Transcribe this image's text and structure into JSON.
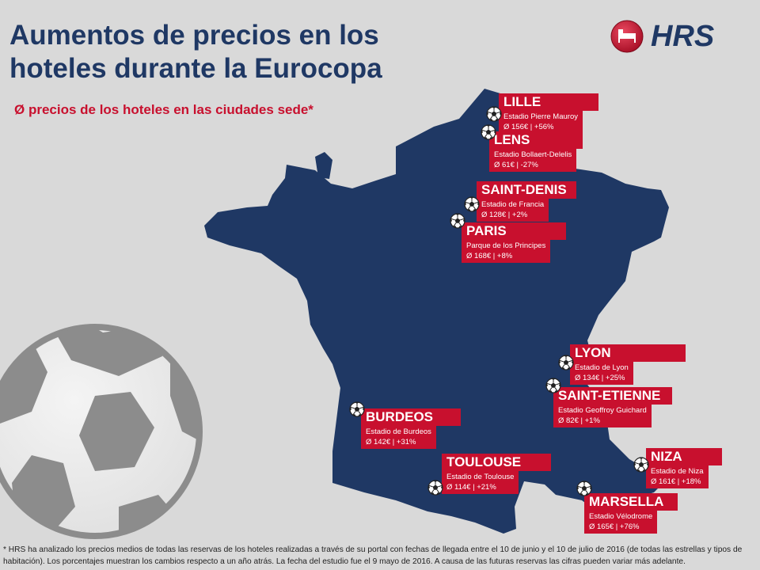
{
  "title": "Aumentos de precios en los hoteles durante la Eurocopa",
  "subtitle": "Ø precios de los hoteles en las ciudades sede*",
  "logo": {
    "text": "HRS",
    "icon": "bed-icon",
    "brand_color": "#c8102e",
    "text_color": "#1f3864"
  },
  "colors": {
    "map": "#1f3864",
    "label": "#c8102e",
    "background": "#d9d9d9"
  },
  "decoration": {
    "icon": "soccer-ball-icon"
  },
  "cities": [
    {
      "name": "LILLE",
      "stadium": "Estadio Pierre Mauroy",
      "stats": "Ø 156€ | +56%"
    },
    {
      "name": "LENS",
      "stadium": "Estadio Bollaert-Delelis",
      "stats": "Ø 61€ | -27%"
    },
    {
      "name": "SAINT-DENIS",
      "stadium": "Estadio de Francia",
      "stats": "Ø 128€ | +2%"
    },
    {
      "name": "PARIS",
      "stadium": "Parque de los Principes",
      "stats": "Ø 168€ | +8%"
    },
    {
      "name": "LYON",
      "stadium": "Estadio de Lyon",
      "stats": "Ø 134€ | +25%"
    },
    {
      "name": "SAINT-ETIENNE",
      "stadium": "Estadio Geoffroy Guichard",
      "stats": "Ø 82€ | +1%"
    },
    {
      "name": "BURDEOS",
      "stadium": "Estadio de Burdeos",
      "stats": "Ø 142€ | +31%"
    },
    {
      "name": "TOULOUSE",
      "stadium": "Estadio de Toulouse",
      "stats": "Ø 114€ | +21%"
    },
    {
      "name": "NIZA",
      "stadium": "Estadio de Niza",
      "stats": "Ø 161€ | +18%"
    },
    {
      "name": "MARSELLA",
      "stadium": "Estadio Vélodrome",
      "stats": "Ø 165€ | +76%"
    }
  ],
  "footnote": "* HRS  ha analizado los precios medios de todas las reservas de los hoteles realizadas a través de su portal con fechas de llegada entre el 10 de junio  y el 10 de julio de 2016 (de todas las estrellas y tipos de habitación). Los porcentajes muestran los cambios respecto a un año atrás. La fecha del estudio fue el 9 mayo de 2016. A causa de las futuras reservas las cifras pueden variar más adelante."
}
